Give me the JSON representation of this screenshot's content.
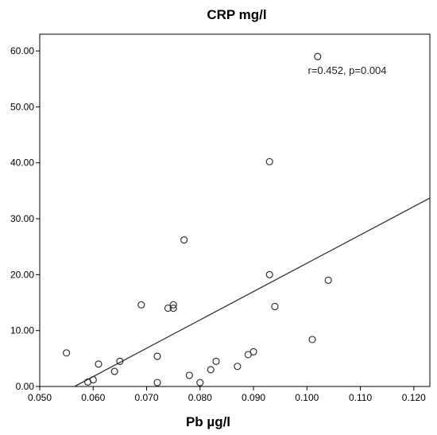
{
  "chart_data": {
    "type": "scatter",
    "title": "CRP mg/l",
    "xlabel": "Pb  µg/l",
    "ylabel": "",
    "xlim": [
      0.05,
      0.123
    ],
    "ylim": [
      0,
      63
    ],
    "x_ticks": [
      0.05,
      0.06,
      0.07,
      0.08,
      0.09,
      0.1,
      0.11,
      0.12
    ],
    "x_tick_labels": [
      "0.050",
      "0.060",
      "0.070",
      "0.080",
      "0.090",
      "0.100",
      "0.110",
      "0.120"
    ],
    "y_ticks": [
      0,
      10,
      20,
      30,
      40,
      50,
      60
    ],
    "y_tick_labels": [
      "0.00",
      "10.00",
      "20.00",
      "30.00",
      "40.00",
      "50.00",
      "60.00"
    ],
    "grid": false,
    "legend": "none",
    "marker_color": "#333333",
    "line_color": "#333333",
    "annotation": "r=0.452, p=0.004",
    "series": [
      {
        "marker": "open-circle",
        "points": [
          {
            "x": 0.055,
            "y": 6.0
          },
          {
            "x": 0.059,
            "y": 0.8
          },
          {
            "x": 0.06,
            "y": 1.2
          },
          {
            "x": 0.061,
            "y": 4.0
          },
          {
            "x": 0.064,
            "y": 2.7
          },
          {
            "x": 0.065,
            "y": 4.5
          },
          {
            "x": 0.069,
            "y": 14.6
          },
          {
            "x": 0.072,
            "y": 5.4
          },
          {
            "x": 0.072,
            "y": 0.7
          },
          {
            "x": 0.074,
            "y": 14.0
          },
          {
            "x": 0.075,
            "y": 14.6
          },
          {
            "x": 0.075,
            "y": 14.0
          },
          {
            "x": 0.077,
            "y": 26.2
          },
          {
            "x": 0.078,
            "y": 2.0
          },
          {
            "x": 0.08,
            "y": 0.7
          },
          {
            "x": 0.082,
            "y": 3.0
          },
          {
            "x": 0.083,
            "y": 4.5
          },
          {
            "x": 0.087,
            "y": 3.6
          },
          {
            "x": 0.089,
            "y": 5.7
          },
          {
            "x": 0.09,
            "y": 6.2
          },
          {
            "x": 0.093,
            "y": 20.0
          },
          {
            "x": 0.093,
            "y": 40.2
          },
          {
            "x": 0.094,
            "y": 14.3
          },
          {
            "x": 0.101,
            "y": 8.4
          },
          {
            "x": 0.102,
            "y": 59.0
          },
          {
            "x": 0.104,
            "y": 19.0
          }
        ]
      }
    ],
    "fit_line": {
      "type": "linear",
      "from": {
        "x": 0.0565,
        "y": 0.0
      },
      "to": {
        "x": 0.123,
        "y": 33.7
      }
    }
  }
}
